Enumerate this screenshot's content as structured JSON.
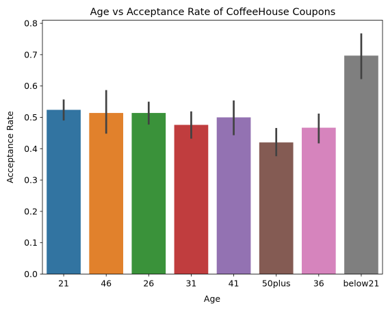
{
  "chart_data": {
    "type": "bar",
    "title": "Age vs Acceptance Rate of CoffeeHouse Coupons",
    "xlabel": "Age",
    "ylabel": "Acceptance Rate",
    "categories": [
      "21",
      "46",
      "26",
      "31",
      "41",
      "50plus",
      "36",
      "below21"
    ],
    "values": [
      0.524,
      0.514,
      0.514,
      0.476,
      0.5,
      0.42,
      0.467,
      0.697
    ],
    "error_low": [
      0.49,
      0.448,
      0.477,
      0.432,
      0.443,
      0.376,
      0.417,
      0.622
    ],
    "error_high": [
      0.557,
      0.587,
      0.55,
      0.519,
      0.554,
      0.466,
      0.512,
      0.768
    ],
    "colors": [
      "#3274a1",
      "#e1812c",
      "#3a923a",
      "#c03d3e",
      "#9372b2",
      "#845b53",
      "#d684bd",
      "#7f7f7f"
    ],
    "error_color": "#424242",
    "ylim": [
      0,
      0.81
    ],
    "yticks": [
      "0.0",
      "0.1",
      "0.2",
      "0.3",
      "0.4",
      "0.5",
      "0.6",
      "0.7",
      "0.8"
    ],
    "grid": false,
    "legend": false
  }
}
